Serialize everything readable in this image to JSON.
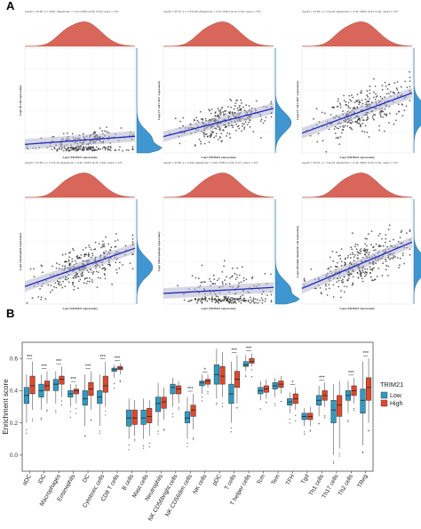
{
  "figure": {
    "panel_a_label": "A",
    "panel_b_label": "B"
  },
  "panel_a": {
    "x_label": "Log2 (TRIM21 expression)",
    "plots": [
      {
        "id": "a1",
        "stat": "log₂(Z) = 25.00, p = 0.001, ρ̂Spearman = 0.14, CI95% [0.06, 0.24], npairs = 374",
        "y_label": "Log2 (B cell expression)",
        "slope": 0.08,
        "n": 260,
        "spread": 0.12,
        "base": 0.08,
        "cluster": true
      },
      {
        "id": "a2",
        "stat": "log₂(Z) = 25.75, p = 2.37e-06, ρ̂Spearman = 0.24, CI95% [0.14, 0.34], npairs = 374",
        "y_label": "Log2 (T cell CD4+ expression)",
        "slope": 0.28,
        "n": 300,
        "spread": 0.22,
        "base": 0.15,
        "cluster": false
      },
      {
        "id": "a3",
        "stat": "log₂(Z) = 33.48, p = 3.3e-16, ρ̂Spearman = 0.32, CI95% [0.23, 0.41], npairs = 374",
        "y_label": "Log2 (T cell CD8+ expression)",
        "slope": 0.4,
        "n": 320,
        "spread": 0.28,
        "base": 0.18,
        "cluster": false
      },
      {
        "id": "a4",
        "stat": "log₂(Z) = 33.59, p = 2.77e-16, ρ̂Spearman = 0.40, CI95% [0.31, 0.49], npairs = 374",
        "y_label": "Log2 (Neutrophil expression)",
        "slope": 0.38,
        "n": 320,
        "spread": 0.26,
        "base": 0.16,
        "cluster": false
      },
      {
        "id": "a5",
        "stat": "log₂(Z) = 23.82, p = 0.224, ρ̂Spearman = 0.06, CI95% [-0.04, 0.17], npairs = 374",
        "y_label": "Log2 (Macrophage expression)",
        "slope": 0.06,
        "n": 240,
        "spread": 0.3,
        "base": 0.1,
        "cluster": true
      },
      {
        "id": "a6",
        "stat": "log₂(Z) = 35.42, p = 3.2e-16, ρ̂Spearman = 0.43, CI95% [0.35, 0.51], npairs = 374",
        "y_label": "Log2 (Myeloid dendritic cell expression)",
        "slope": 0.46,
        "n": 340,
        "spread": 0.28,
        "base": 0.14,
        "cluster": false
      }
    ]
  },
  "chart_data": {
    "type": "box",
    "title": "",
    "ylabel": "Enrichment score",
    "ylim": [
      -0.1,
      0.7
    ],
    "yticks": [
      0.0,
      0.2,
      0.4,
      0.6
    ],
    "legend": {
      "title": "TRIM21",
      "placement": "right",
      "entries": [
        "Low",
        "High"
      ]
    },
    "series_colors": {
      "Low": "#2e9bc4",
      "High": "#e0482c"
    },
    "categories": [
      "aDC",
      "iDC",
      "Macrophages",
      "Eosinophils",
      "DC",
      "Cytotoxic cells",
      "CD8 T cells",
      "B cells",
      "Mast cells",
      "Neutrophils",
      "NK CD56bright cells",
      "NK CD56dim cells",
      "NK cells",
      "pDC",
      "T cells",
      "T helper cells",
      "Tcm",
      "Tem",
      "TFH",
      "Tgd",
      "Th1 cells",
      "Th17 cells",
      "Th2 cells",
      "TReg"
    ],
    "significance": [
      "***",
      "***",
      "***",
      "***",
      "***",
      "***",
      "***",
      "",
      "",
      "",
      "",
      "***",
      "*",
      "",
      "***",
      "***",
      "",
      "",
      "*",
      "",
      "***",
      "",
      "***",
      "***"
    ],
    "series": [
      {
        "name": "Low",
        "boxes": [
          {
            "min": 0.2,
            "q1": 0.32,
            "median": 0.37,
            "q3": 0.42,
            "max": 0.5
          },
          {
            "min": 0.28,
            "q1": 0.36,
            "median": 0.4,
            "q3": 0.44,
            "max": 0.5
          },
          {
            "min": 0.32,
            "q1": 0.4,
            "median": 0.44,
            "q3": 0.47,
            "max": 0.52
          },
          {
            "min": 0.3,
            "q1": 0.36,
            "median": 0.38,
            "q3": 0.4,
            "max": 0.44
          },
          {
            "min": 0.18,
            "q1": 0.31,
            "median": 0.35,
            "q3": 0.4,
            "max": 0.5
          },
          {
            "min": 0.18,
            "q1": 0.32,
            "median": 0.36,
            "q3": 0.4,
            "max": 0.5
          },
          {
            "min": 0.48,
            "q1": 0.52,
            "median": 0.53,
            "q3": 0.54,
            "max": 0.56
          },
          {
            "min": 0.1,
            "q1": 0.18,
            "median": 0.23,
            "q3": 0.28,
            "max": 0.35
          },
          {
            "min": 0.1,
            "q1": 0.19,
            "median": 0.23,
            "q3": 0.28,
            "max": 0.35
          },
          {
            "min": 0.18,
            "q1": 0.27,
            "median": 0.32,
            "q3": 0.36,
            "max": 0.45
          },
          {
            "min": 0.3,
            "q1": 0.38,
            "median": 0.42,
            "q3": 0.44,
            "max": 0.48
          },
          {
            "min": 0.1,
            "q1": 0.2,
            "median": 0.23,
            "q3": 0.27,
            "max": 0.36
          },
          {
            "min": 0.38,
            "q1": 0.43,
            "median": 0.45,
            "q3": 0.46,
            "max": 0.5
          },
          {
            "min": 0.35,
            "q1": 0.44,
            "median": 0.5,
            "q3": 0.56,
            "max": 0.66
          },
          {
            "min": 0.2,
            "q1": 0.32,
            "median": 0.38,
            "q3": 0.44,
            "max": 0.58
          },
          {
            "min": 0.52,
            "q1": 0.55,
            "median": 0.56,
            "q3": 0.58,
            "max": 0.62
          },
          {
            "min": 0.34,
            "q1": 0.38,
            "median": 0.4,
            "q3": 0.42,
            "max": 0.46
          },
          {
            "min": 0.36,
            "q1": 0.41,
            "median": 0.43,
            "q3": 0.45,
            "max": 0.48
          },
          {
            "min": 0.26,
            "q1": 0.31,
            "median": 0.33,
            "q3": 0.35,
            "max": 0.39
          },
          {
            "min": 0.18,
            "q1": 0.22,
            "median": 0.24,
            "q3": 0.26,
            "max": 0.29
          },
          {
            "min": 0.24,
            "q1": 0.31,
            "median": 0.34,
            "q3": 0.37,
            "max": 0.43
          },
          {
            "min": 0.0,
            "q1": 0.2,
            "median": 0.28,
            "q3": 0.34,
            "max": 0.44
          },
          {
            "min": 0.26,
            "q1": 0.34,
            "median": 0.37,
            "q3": 0.4,
            "max": 0.46
          },
          {
            "min": 0.06,
            "q1": 0.26,
            "median": 0.34,
            "q3": 0.41,
            "max": 0.58
          }
        ]
      },
      {
        "name": "High",
        "boxes": [
          {
            "min": 0.28,
            "q1": 0.38,
            "median": 0.43,
            "q3": 0.49,
            "max": 0.58
          },
          {
            "min": 0.32,
            "q1": 0.4,
            "median": 0.43,
            "q3": 0.46,
            "max": 0.52
          },
          {
            "min": 0.36,
            "q1": 0.44,
            "median": 0.47,
            "q3": 0.49,
            "max": 0.55
          },
          {
            "min": 0.32,
            "q1": 0.38,
            "median": 0.4,
            "q3": 0.41,
            "max": 0.44
          },
          {
            "min": 0.28,
            "q1": 0.37,
            "median": 0.41,
            "q3": 0.45,
            "max": 0.52
          },
          {
            "min": 0.3,
            "q1": 0.39,
            "median": 0.43,
            "q3": 0.49,
            "max": 0.58
          },
          {
            "min": 0.5,
            "q1": 0.53,
            "median": 0.54,
            "q3": 0.55,
            "max": 0.57
          },
          {
            "min": 0.12,
            "q1": 0.19,
            "median": 0.23,
            "q3": 0.28,
            "max": 0.34
          },
          {
            "min": 0.12,
            "q1": 0.2,
            "median": 0.24,
            "q3": 0.29,
            "max": 0.34
          },
          {
            "min": 0.22,
            "q1": 0.29,
            "median": 0.33,
            "q3": 0.36,
            "max": 0.42
          },
          {
            "min": 0.32,
            "q1": 0.38,
            "median": 0.41,
            "q3": 0.43,
            "max": 0.46
          },
          {
            "min": 0.16,
            "q1": 0.24,
            "median": 0.28,
            "q3": 0.31,
            "max": 0.38
          },
          {
            "min": 0.42,
            "q1": 0.44,
            "median": 0.46,
            "q3": 0.47,
            "max": 0.5
          },
          {
            "min": 0.36,
            "q1": 0.44,
            "median": 0.49,
            "q3": 0.55,
            "max": 0.64
          },
          {
            "min": 0.32,
            "q1": 0.42,
            "median": 0.47,
            "q3": 0.52,
            "max": 0.62
          },
          {
            "min": 0.55,
            "q1": 0.57,
            "median": 0.58,
            "q3": 0.6,
            "max": 0.63
          },
          {
            "min": 0.35,
            "q1": 0.39,
            "median": 0.41,
            "q3": 0.43,
            "max": 0.47
          },
          {
            "min": 0.38,
            "q1": 0.42,
            "median": 0.44,
            "q3": 0.46,
            "max": 0.49
          },
          {
            "min": 0.28,
            "q1": 0.32,
            "median": 0.35,
            "q3": 0.38,
            "max": 0.42
          },
          {
            "min": 0.18,
            "q1": 0.22,
            "median": 0.24,
            "q3": 0.26,
            "max": 0.3
          },
          {
            "min": 0.3,
            "q1": 0.34,
            "median": 0.37,
            "q3": 0.4,
            "max": 0.45
          },
          {
            "min": 0.04,
            "q1": 0.24,
            "median": 0.31,
            "q3": 0.37,
            "max": 0.46
          },
          {
            "min": 0.32,
            "q1": 0.37,
            "median": 0.4,
            "q3": 0.43,
            "max": 0.48
          },
          {
            "min": 0.2,
            "q1": 0.34,
            "median": 0.42,
            "q3": 0.48,
            "max": 0.6
          }
        ]
      }
    ]
  }
}
